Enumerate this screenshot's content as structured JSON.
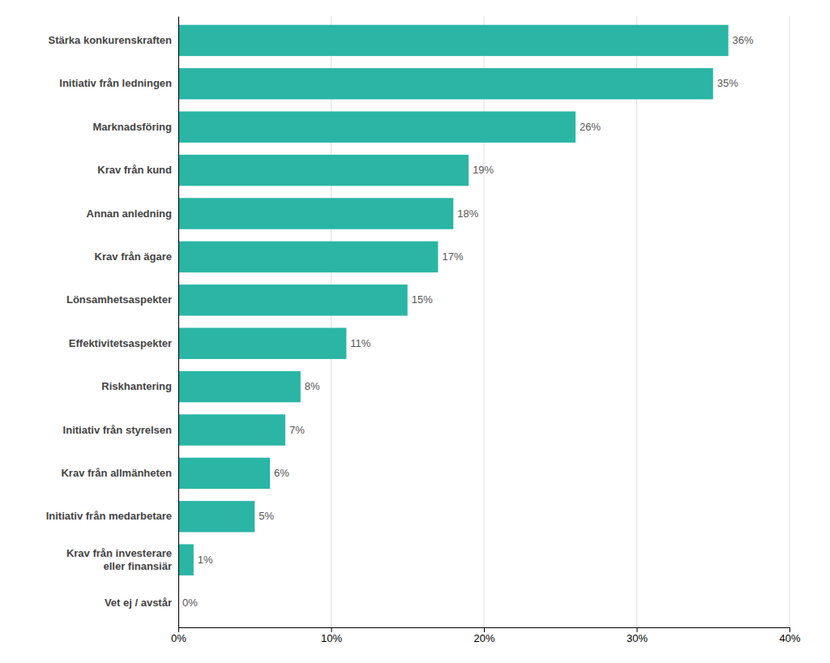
{
  "chart_data": {
    "type": "bar",
    "orientation": "horizontal",
    "categories": [
      "Stärka konkurenskraften",
      "Initiativ från ledningen",
      "Marknadsföring",
      "Krav från kund",
      "Annan anledning",
      "Krav från ägare",
      "Lönsamhetsaspekter",
      "Effektivitetsaspekter",
      "Riskhantering",
      "Initiativ från styrelsen",
      "Krav från allmänheten",
      "Initiativ från medarbetare",
      "Krav från investerare\neller finansiär",
      "Vet ej / avstår"
    ],
    "values": [
      36,
      35,
      26,
      19,
      18,
      17,
      15,
      11,
      8,
      7,
      6,
      5,
      1,
      0
    ],
    "value_labels": [
      "36%",
      "35%",
      "26%",
      "19%",
      "18%",
      "17%",
      "15%",
      "11%",
      "8%",
      "7%",
      "6%",
      "5%",
      "1%",
      "0%"
    ],
    "color": "#2ab5a5",
    "xlim": [
      0,
      40
    ],
    "xticks": [
      {
        "value": 0,
        "label": "0%"
      },
      {
        "value": 10,
        "label": "10%"
      },
      {
        "value": 20,
        "label": "20%"
      },
      {
        "value": 30,
        "label": "30%"
      },
      {
        "value": 40,
        "label": "40%"
      }
    ],
    "grid": true,
    "data_labels": true
  }
}
